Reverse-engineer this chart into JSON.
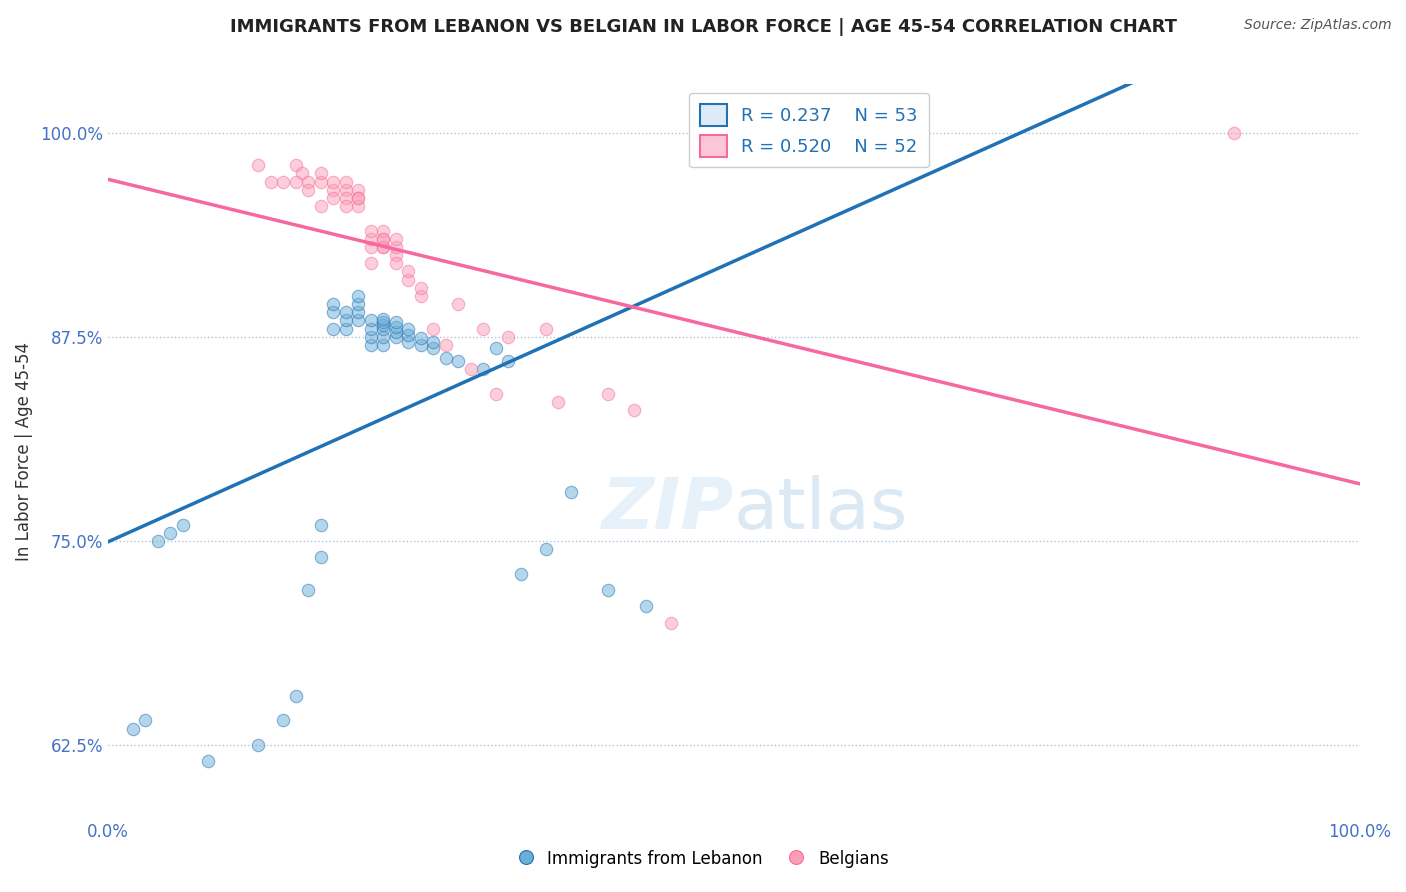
{
  "title": "IMMIGRANTS FROM LEBANON VS BELGIAN IN LABOR FORCE | AGE 45-54 CORRELATION CHART",
  "source": "Source: ZipAtlas.com",
  "ylabel": "In Labor Force | Age 45-54",
  "xlabel": "",
  "xlim": [
    0.0,
    1.0
  ],
  "ylim": [
    0.58,
    1.03
  ],
  "yticks": [
    0.625,
    0.75,
    0.875,
    1.0
  ],
  "ytick_labels": [
    "62.5%",
    "75.0%",
    "87.5%",
    "100.0%"
  ],
  "xtick_labels": [
    "0.0%",
    "100.0%"
  ],
  "xticks": [
    0.0,
    1.0
  ],
  "r_blue": 0.237,
  "n_blue": 53,
  "r_pink": 0.52,
  "n_pink": 52,
  "blue_color": "#6baed6",
  "pink_color": "#fa9fb5",
  "blue_line_color": "#2171b5",
  "pink_line_color": "#f768a1",
  "legend_box_color": "#deebf7",
  "legend_pink_box_color": "#fcc5d8",
  "blue_scatter_x": [
    0.08,
    0.12,
    0.14,
    0.15,
    0.16,
    0.17,
    0.17,
    0.18,
    0.18,
    0.18,
    0.19,
    0.19,
    0.19,
    0.2,
    0.2,
    0.2,
    0.2,
    0.21,
    0.21,
    0.21,
    0.21,
    0.22,
    0.22,
    0.22,
    0.22,
    0.22,
    0.22,
    0.23,
    0.23,
    0.23,
    0.23,
    0.24,
    0.24,
    0.24,
    0.25,
    0.25,
    0.26,
    0.26,
    0.27,
    0.28,
    0.3,
    0.31,
    0.32,
    0.33,
    0.35,
    0.37,
    0.4,
    0.43,
    0.02,
    0.03,
    0.04,
    0.05,
    0.06
  ],
  "blue_scatter_y": [
    0.615,
    0.625,
    0.64,
    0.655,
    0.72,
    0.74,
    0.76,
    0.88,
    0.89,
    0.895,
    0.88,
    0.885,
    0.89,
    0.885,
    0.89,
    0.895,
    0.9,
    0.87,
    0.875,
    0.88,
    0.885,
    0.87,
    0.875,
    0.88,
    0.882,
    0.884,
    0.886,
    0.875,
    0.878,
    0.881,
    0.884,
    0.872,
    0.876,
    0.88,
    0.87,
    0.874,
    0.868,
    0.872,
    0.862,
    0.86,
    0.855,
    0.868,
    0.86,
    0.73,
    0.745,
    0.78,
    0.72,
    0.71,
    0.635,
    0.64,
    0.75,
    0.755,
    0.76
  ],
  "pink_scatter_x": [
    0.12,
    0.13,
    0.15,
    0.155,
    0.16,
    0.17,
    0.17,
    0.18,
    0.18,
    0.19,
    0.19,
    0.19,
    0.2,
    0.2,
    0.2,
    0.2,
    0.21,
    0.21,
    0.21,
    0.22,
    0.22,
    0.22,
    0.22,
    0.23,
    0.23,
    0.23,
    0.24,
    0.24,
    0.25,
    0.26,
    0.28,
    0.3,
    0.32,
    0.35,
    0.36,
    0.4,
    0.42,
    0.45,
    0.9,
    0.14,
    0.15,
    0.16,
    0.17,
    0.18,
    0.19,
    0.21,
    0.22,
    0.23,
    0.25,
    0.27,
    0.29,
    0.31
  ],
  "pink_scatter_y": [
    0.98,
    0.97,
    0.98,
    0.975,
    0.97,
    0.97,
    0.975,
    0.965,
    0.97,
    0.965,
    0.96,
    0.97,
    0.965,
    0.96,
    0.955,
    0.96,
    0.92,
    0.93,
    0.935,
    0.93,
    0.935,
    0.93,
    0.94,
    0.925,
    0.93,
    0.935,
    0.91,
    0.915,
    0.9,
    0.88,
    0.895,
    0.88,
    0.875,
    0.88,
    0.835,
    0.84,
    0.83,
    0.7,
    1.0,
    0.97,
    0.97,
    0.965,
    0.955,
    0.96,
    0.955,
    0.94,
    0.935,
    0.92,
    0.905,
    0.87,
    0.855,
    0.84
  ]
}
